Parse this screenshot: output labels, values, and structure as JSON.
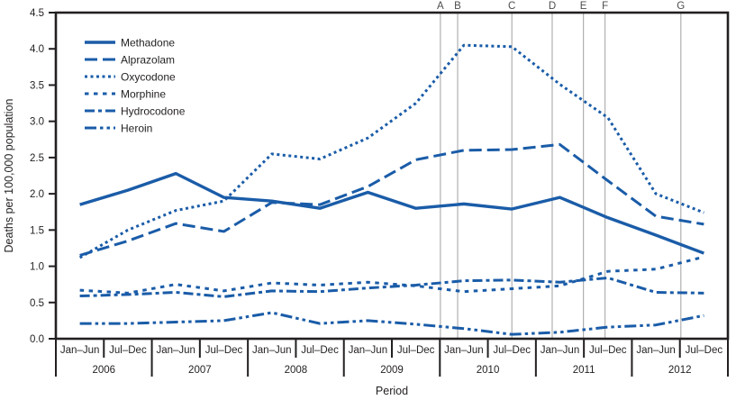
{
  "chart_data": {
    "type": "line",
    "title": "",
    "ylabel": "Deaths per 100,000 population",
    "xlabel": "Period",
    "ylim": [
      0,
      4.5
    ],
    "yticks": [
      "0.0",
      "0.5",
      "1.0",
      "1.5",
      "2.0",
      "2.5",
      "3.0",
      "3.5",
      "4.0",
      "4.5"
    ],
    "x_axis": {
      "half_labels": [
        "Jan–Jun",
        "Jul–Dec"
      ],
      "years": [
        "2006",
        "2007",
        "2008",
        "2009",
        "2010",
        "2011",
        "2012"
      ]
    },
    "legend_position": "top-left-inside",
    "grid": "off",
    "series": [
      {
        "name": "Methadone",
        "dash": "solid",
        "values": [
          1.85,
          2.05,
          2.28,
          1.95,
          1.9,
          1.8,
          2.02,
          1.8,
          1.86,
          1.79,
          1.95,
          1.67,
          1.43,
          1.18
        ]
      },
      {
        "name": "Alprazolam",
        "dash": "long-dash",
        "values": [
          1.15,
          1.35,
          1.59,
          1.48,
          1.88,
          1.85,
          2.1,
          2.47,
          2.6,
          2.61,
          2.68,
          2.18,
          1.69,
          1.58
        ]
      },
      {
        "name": "Oxycodone",
        "dash": "dot",
        "values": [
          1.12,
          1.5,
          1.77,
          1.9,
          2.55,
          2.48,
          2.77,
          3.25,
          4.05,
          4.03,
          3.51,
          3.05,
          2.0,
          1.74
        ]
      },
      {
        "name": "Morphine",
        "dash": "square-dash",
        "values": [
          0.67,
          0.63,
          0.75,
          0.66,
          0.77,
          0.74,
          0.78,
          0.73,
          0.65,
          0.69,
          0.73,
          0.93,
          0.96,
          1.13
        ]
      },
      {
        "name": "Hydrocodone",
        "dash": "dash-dot",
        "values": [
          0.59,
          0.61,
          0.64,
          0.58,
          0.66,
          0.65,
          0.7,
          0.74,
          0.8,
          0.81,
          0.78,
          0.84,
          0.64,
          0.63
        ]
      },
      {
        "name": "Heroin",
        "dash": "dash-dot-dot",
        "values": [
          0.21,
          0.21,
          0.23,
          0.25,
          0.36,
          0.21,
          0.25,
          0.2,
          0.14,
          0.06,
          0.09,
          0.16,
          0.19,
          0.32
        ]
      }
    ],
    "reference_lines": [
      {
        "label": "A",
        "x": 7.51
      },
      {
        "label": "B",
        "x": 7.87
      },
      {
        "label": "C",
        "x": 9.0
      },
      {
        "label": "D",
        "x": 9.84
      },
      {
        "label": "E",
        "x": 10.49
      },
      {
        "label": "F",
        "x": 10.94
      },
      {
        "label": "G",
        "x": 12.52
      }
    ],
    "colors": {
      "line": "#1a5ca8",
      "axis": "#231f20",
      "reference_line": "#b0b0b0",
      "reference_label": "#4d4d4d",
      "text": "#231f20"
    }
  }
}
